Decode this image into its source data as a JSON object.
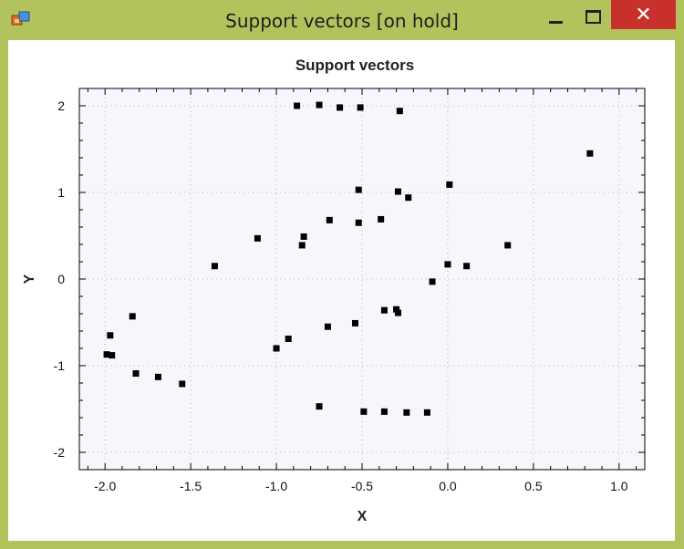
{
  "window": {
    "title": "Support vectors [on hold]",
    "close_glyph": "✕",
    "icons": [
      "app-window-icon",
      "minimize-icon",
      "maximize-icon",
      "close-icon"
    ]
  },
  "colors": {
    "frame": "#b2c25c",
    "close": "#c7302b",
    "plot_bg": "#f6f7fc",
    "marker": "#000000"
  },
  "chart_data": {
    "type": "scatter",
    "title": "Support vectors",
    "xlabel": "X",
    "ylabel": "Y",
    "xlim": [
      -2.15,
      1.15
    ],
    "ylim": [
      -2.2,
      2.2
    ],
    "xticks": [
      -2.0,
      -1.5,
      -1.0,
      -0.5,
      0.0,
      0.5,
      1.0
    ],
    "xtick_labels": [
      "-2.0",
      "-1.5",
      "-1.0",
      "-0.5",
      "0.0",
      "0.5",
      "1.0"
    ],
    "yticks": [
      -2,
      -1,
      0,
      1,
      2
    ],
    "ytick_labels": [
      "-2",
      "-1",
      "0",
      "1",
      "2"
    ],
    "grid": true,
    "series": [
      {
        "marker": "square",
        "points": [
          [
            -0.88,
            2.0
          ],
          [
            -0.75,
            2.01
          ],
          [
            -0.63,
            1.98
          ],
          [
            -0.51,
            1.98
          ],
          [
            -0.28,
            1.94
          ],
          [
            0.83,
            1.45
          ],
          [
            -0.52,
            1.03
          ],
          [
            -0.29,
            1.01
          ],
          [
            -0.23,
            0.94
          ],
          [
            0.01,
            1.09
          ],
          [
            -0.69,
            0.68
          ],
          [
            -0.52,
            0.65
          ],
          [
            -0.39,
            0.69
          ],
          [
            -1.11,
            0.47
          ],
          [
            -0.84,
            0.49
          ],
          [
            -0.85,
            0.39
          ],
          [
            -1.36,
            0.15
          ],
          [
            0.35,
            0.39
          ],
          [
            0.0,
            0.17
          ],
          [
            0.11,
            0.15
          ],
          [
            -0.09,
            -0.03
          ],
          [
            -1.84,
            -0.43
          ],
          [
            -1.97,
            -0.65
          ],
          [
            -0.37,
            -0.36
          ],
          [
            -0.3,
            -0.35
          ],
          [
            -0.29,
            -0.39
          ],
          [
            -0.54,
            -0.51
          ],
          [
            -0.7,
            -0.55
          ],
          [
            -0.93,
            -0.69
          ],
          [
            -1.0,
            -0.8
          ],
          [
            -1.99,
            -0.87
          ],
          [
            -1.96,
            -0.88
          ],
          [
            -1.82,
            -1.09
          ],
          [
            -1.69,
            -1.13
          ],
          [
            -1.55,
            -1.21
          ],
          [
            -0.75,
            -1.47
          ],
          [
            -0.49,
            -1.53
          ],
          [
            -0.37,
            -1.53
          ],
          [
            -0.24,
            -1.54
          ],
          [
            -0.12,
            -1.54
          ]
        ]
      }
    ]
  }
}
